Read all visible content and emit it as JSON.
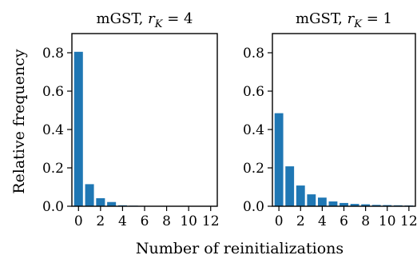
{
  "figure": {
    "xlabel": "Number of reinitializations",
    "ylabel": "Relative frequency"
  },
  "chart_data": [
    {
      "type": "bar",
      "title": "mGST, r_K = 4",
      "title_parts": {
        "prefix": "mGST, ",
        "var": "r",
        "sub": "K",
        "suffix": " = 4"
      },
      "xlabel": "Number of reinitializations",
      "ylabel": "Relative frequency",
      "categories": [
        0,
        1,
        2,
        3,
        4,
        5,
        6,
        7,
        8,
        9,
        10,
        11,
        12
      ],
      "values": [
        0.805,
        0.115,
        0.042,
        0.022,
        0.005,
        0.003,
        0.002,
        0.002,
        0.002,
        0.001,
        0.001,
        0.001,
        0.001
      ],
      "xticks": [
        "0",
        "2",
        "4",
        "6",
        "8",
        "10",
        "12"
      ],
      "yticks": [
        "0.0",
        "0.2",
        "0.4",
        "0.6",
        "0.8"
      ],
      "ylim": [
        0,
        0.9
      ],
      "bar_color": "#1f77b4",
      "grid": false
    },
    {
      "type": "bar",
      "title": "mGST, r_K = 1",
      "title_parts": {
        "prefix": "mGST, ",
        "var": "r",
        "sub": "K",
        "suffix": " = 1"
      },
      "xlabel": "Number of reinitializations",
      "ylabel": "Relative frequency",
      "categories": [
        0,
        1,
        2,
        3,
        4,
        5,
        6,
        7,
        8,
        9,
        10,
        11,
        12
      ],
      "values": [
        0.485,
        0.208,
        0.108,
        0.062,
        0.045,
        0.025,
        0.017,
        0.012,
        0.01,
        0.007,
        0.006,
        0.005,
        0.004
      ],
      "xticks": [
        "0",
        "2",
        "4",
        "6",
        "8",
        "10",
        "12"
      ],
      "yticks": [
        "0.0",
        "0.2",
        "0.4",
        "0.6",
        "0.8"
      ],
      "ylim": [
        0,
        0.9
      ],
      "bar_color": "#1f77b4",
      "grid": false
    }
  ]
}
